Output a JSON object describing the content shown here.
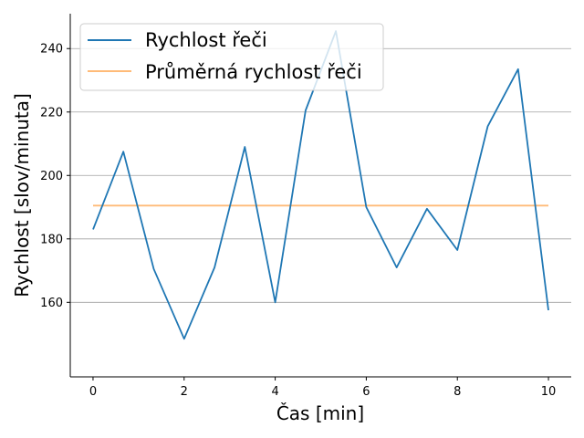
{
  "chart_data": {
    "type": "line",
    "xlabel": "Čas [min]",
    "ylabel": "Rychlost [slov/minuta]",
    "xlim": [
      -0.5,
      10.5
    ],
    "ylim": [
      136.5,
      251
    ],
    "x_ticks": [
      "0",
      "2",
      "4",
      "6",
      "8",
      "10"
    ],
    "y_ticks": [
      "160",
      "180",
      "200",
      "220",
      "240"
    ],
    "grid": "horizontal",
    "legend_position": "top-left",
    "series": [
      {
        "name": "Rychlost řeči",
        "color": "#1f77b4",
        "x": [
          0,
          0.667,
          1.333,
          2,
          2.667,
          3.333,
          4,
          4.667,
          5.333,
          6,
          6.667,
          7.333,
          8,
          8.667,
          9.333,
          10
        ],
        "y": [
          183,
          207.5,
          170.5,
          148.5,
          171,
          209,
          160,
          220.5,
          245.5,
          190,
          171,
          189.5,
          176.5,
          215.5,
          233.5,
          157.5
        ]
      },
      {
        "name": "Průměrná rychlost řeči",
        "color": "#ffbb78",
        "x": [
          0,
          10
        ],
        "y": [
          190.5,
          190.5
        ]
      }
    ]
  }
}
